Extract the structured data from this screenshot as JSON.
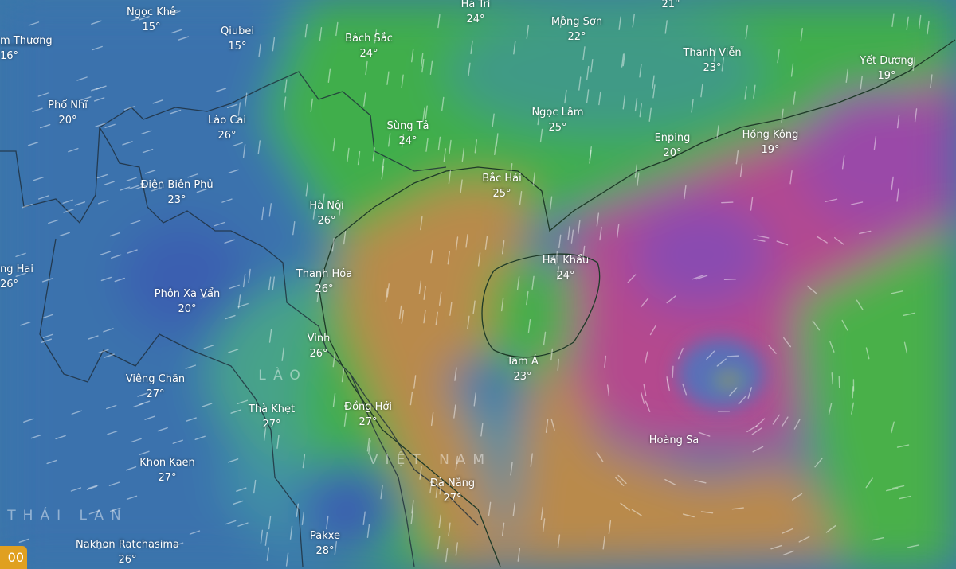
{
  "map": {
    "layer": "wind",
    "colors": {
      "blue": "#3d66b0",
      "teal": "#3f8ea6",
      "green": "#3fae4c",
      "orange": "#b98a4c",
      "magenta": "#b4488e",
      "purple": "#7a4fb8"
    },
    "cities": [
      {
        "name": "Ngọc Khê",
        "temp": "15°"
      },
      {
        "name": "m Thương",
        "temp": "16°"
      },
      {
        "name": "Qiubei",
        "temp": "15°"
      },
      {
        "name": "Bách Sắc",
        "temp": "24°"
      },
      {
        "name": "Hà Trì",
        "temp": "24°"
      },
      {
        "name": "Mông Sơn",
        "temp": "22°"
      },
      {
        "name": "",
        "temp": "21°"
      },
      {
        "name": "Thanh Viễn",
        "temp": "23°"
      },
      {
        "name": "Yết Dương",
        "temp": "19°"
      },
      {
        "name": "Phổ Nhĩ",
        "temp": "20°"
      },
      {
        "name": "Lào Cai",
        "temp": "26°"
      },
      {
        "name": "Sùng Tả",
        "temp": "24°"
      },
      {
        "name": "Ngọc Lâm",
        "temp": "25°"
      },
      {
        "name": "Enping",
        "temp": "20°"
      },
      {
        "name": "Hồng Kông",
        "temp": "19°"
      },
      {
        "name": "Điện Biên Phủ",
        "temp": "23°"
      },
      {
        "name": "Bắc Hải",
        "temp": "25°"
      },
      {
        "name": "Hà Nội",
        "temp": "26°"
      },
      {
        "name": "ng Hai",
        "temp": "26°"
      },
      {
        "name": "Thanh Hóa",
        "temp": "26°"
      },
      {
        "name": "Hải Khẩu",
        "temp": "24°"
      },
      {
        "name": "Phôn Xa Vẩn",
        "temp": "20°"
      },
      {
        "name": "Vinh",
        "temp": "26°"
      },
      {
        "name": "Tam Á",
        "temp": "23°"
      },
      {
        "name": "Viêng Chăn",
        "temp": "27°"
      },
      {
        "name": "Thà Khẹt",
        "temp": "27°"
      },
      {
        "name": "Đồng Hới",
        "temp": "27°"
      },
      {
        "name": "Hoàng Sa",
        "temp": ""
      },
      {
        "name": "Khon Kaen",
        "temp": "27°"
      },
      {
        "name": "Đà Nẵng",
        "temp": "27°"
      },
      {
        "name": "Nakhon Ratchasima",
        "temp": "26°"
      },
      {
        "name": "Pakxe",
        "temp": "28°"
      }
    ],
    "countries": [
      "LÀO",
      "VIỆT NAM",
      "THÁI LAN"
    ],
    "badge": "00"
  }
}
